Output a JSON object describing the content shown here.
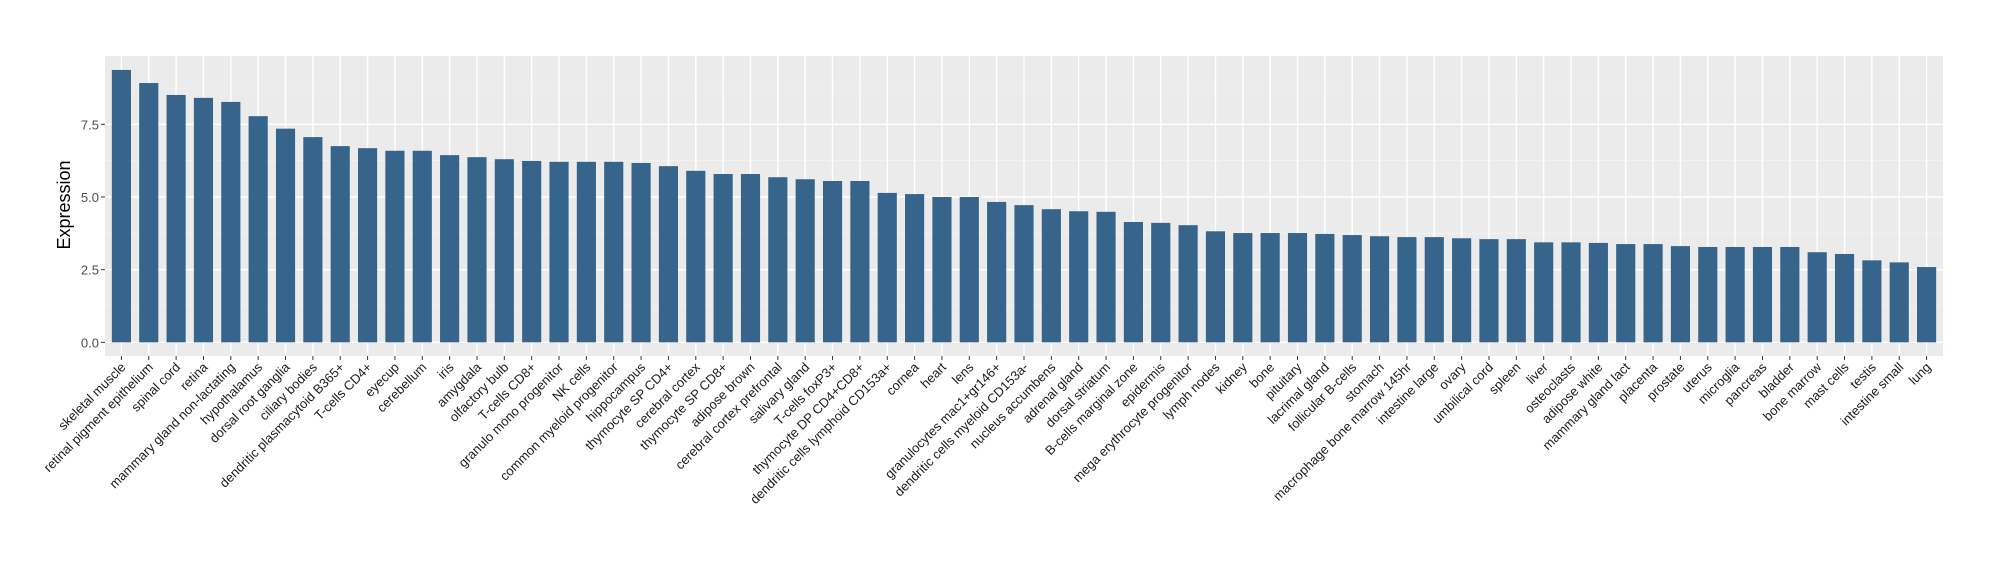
{
  "chart_data": {
    "type": "bar",
    "title": "",
    "xlabel": "",
    "ylabel": "Expression",
    "ylim": [
      -0.47,
      9.85
    ],
    "yticks": [
      0.0,
      2.5,
      5.0,
      7.5
    ],
    "ytick_labels": [
      "0.0",
      "2.5",
      "5.0",
      "7.5"
    ],
    "grid": true,
    "bar_color": "#36648B",
    "panel_color": "#EBEBEB",
    "categories": [
      "skeletal muscle",
      "retinal pigment epithelium",
      "spinal cord",
      "retina",
      "mammary gland non-lactating",
      "hypothalamus",
      "dorsal root ganglia",
      "ciliary bodies",
      "dendritic plasmacytoid B365+",
      "T-cells CD4+",
      "eyecup",
      "cerebellum",
      "iris",
      "amygdala",
      "olfactory bulb",
      "T-cells CD8+",
      "granulo mono progenitor",
      "NK cells",
      "common myeloid progenitor",
      "hippocampus",
      "thymocyte SP CD4+",
      "cerebral cortex",
      "thymocyte SP CD8+",
      "adipose brown",
      "cerebral cortex prefrontal",
      "salivary gland",
      "T-cells foxP3+",
      "thymocyte DP CD4+CD8+",
      "dendritic cells lymphoid CD153a+",
      "cornea",
      "heart",
      "lens",
      "granulocytes mac1+gr146+",
      "dendritic cells myeloid CD153a-",
      "nucleus accumbens",
      "adrenal gland",
      "dorsal striatum",
      "B-cells marginal zone",
      "epidermis",
      "mega erythrocyte progenitor",
      "lymph nodes",
      "kidney",
      "bone",
      "pituitary",
      "lacrimal gland",
      "follicular B-cells",
      "stomach",
      "macrophage bone marrow 145hr",
      "intestine large",
      "ovary",
      "umbilical cord",
      "spleen",
      "liver",
      "osteoclasts",
      "adipose white",
      "mammary gland  lact",
      "placenta",
      "prostate",
      "uterus",
      "microglia",
      "pancreas",
      "bladder",
      "bone marrow",
      "mast cells",
      "testis",
      "intestine small",
      "lung"
    ],
    "values": [
      9.37,
      8.92,
      8.51,
      8.41,
      8.27,
      7.78,
      7.35,
      7.06,
      6.75,
      6.68,
      6.59,
      6.59,
      6.44,
      6.37,
      6.3,
      6.24,
      6.21,
      6.21,
      6.21,
      6.17,
      6.06,
      5.9,
      5.79,
      5.79,
      5.68,
      5.61,
      5.55,
      5.55,
      5.14,
      5.1,
      5.0,
      5.0,
      4.83,
      4.72,
      4.58,
      4.51,
      4.49,
      4.14,
      4.11,
      4.03,
      3.82,
      3.76,
      3.76,
      3.76,
      3.73,
      3.69,
      3.65,
      3.62,
      3.62,
      3.58,
      3.55,
      3.55,
      3.44,
      3.44,
      3.42,
      3.38,
      3.38,
      3.31,
      3.28,
      3.28,
      3.28,
      3.28,
      3.1,
      3.04,
      2.82,
      2.75,
      2.59
    ]
  }
}
